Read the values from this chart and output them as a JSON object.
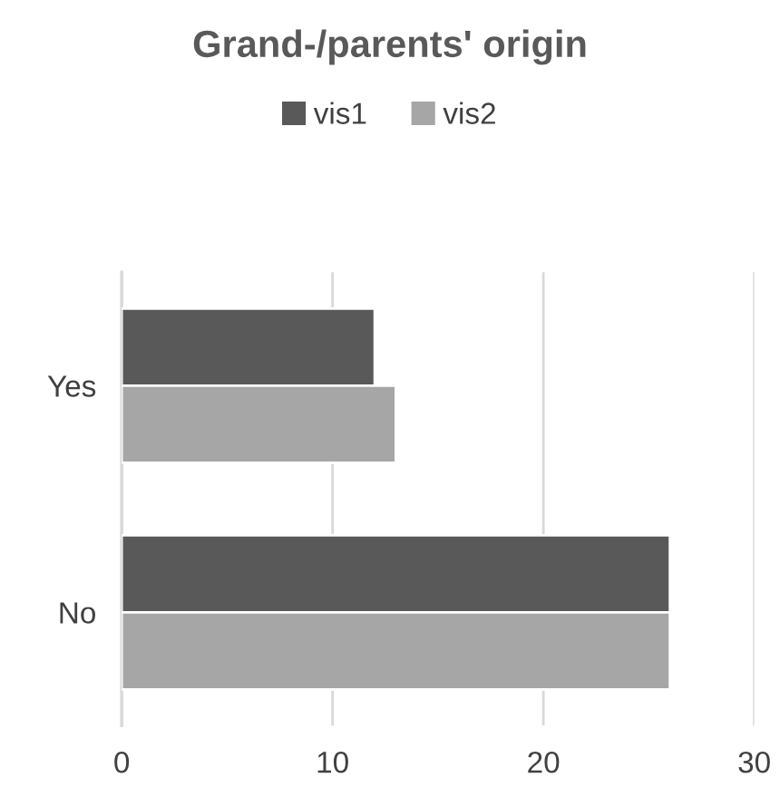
{
  "chart_data": {
    "type": "bar",
    "orientation": "horizontal",
    "title": "Grand-/parents' origin",
    "categories": [
      "Yes",
      "No"
    ],
    "series": [
      {
        "name": "vis1",
        "color": "#595959",
        "values": [
          12,
          26
        ]
      },
      {
        "name": "vis2",
        "color": "#a6a6a6",
        "values": [
          13,
          26
        ]
      }
    ],
    "xlim": [
      0,
      30
    ],
    "xticks": [
      0,
      10,
      20,
      30
    ],
    "grid": "x",
    "legend": "top"
  }
}
